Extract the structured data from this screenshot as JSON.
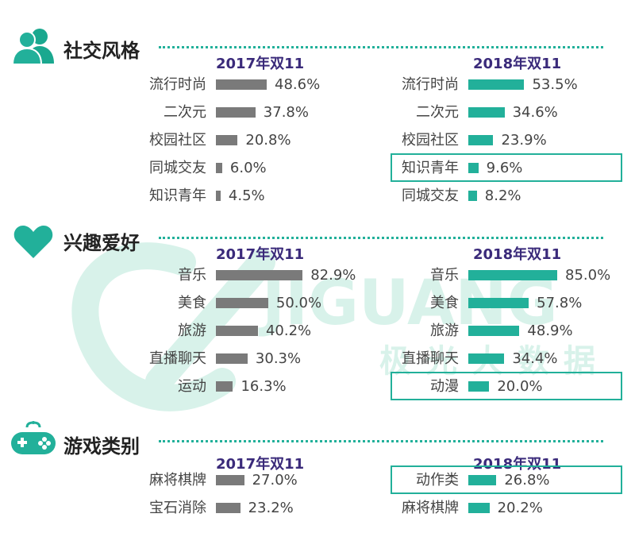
{
  "colors": {
    "accent": "#22b09a",
    "gray_bar": "#7a7a7a",
    "year_text": "#3a2a7a",
    "watermark": "#d8f2ea"
  },
  "watermark": {
    "logo_text": "JIGUANG",
    "sub_text": "极光大数据"
  },
  "sections": [
    {
      "title": "社交风格",
      "icon": "users-icon",
      "chart_data": [
        {
          "type": "bar",
          "title": "2017年双11",
          "categories": [
            "流行时尚",
            "二次元",
            "校园社区",
            "同城交友",
            "知识青年"
          ],
          "values": [
            48.6,
            37.8,
            20.8,
            6.0,
            4.5
          ],
          "labels": [
            "48.6%",
            "37.8%",
            "20.8%",
            "6.0%",
            "4.5%"
          ],
          "highlight": -1
        },
        {
          "type": "bar",
          "title": "2018年双11",
          "categories": [
            "流行时尚",
            "二次元",
            "校园社区",
            "知识青年",
            "同城交友"
          ],
          "values": [
            53.5,
            34.6,
            23.9,
            9.6,
            8.2
          ],
          "labels": [
            "53.5%",
            "34.6%",
            "23.9%",
            "9.6%",
            "8.2%"
          ],
          "highlight": 3
        }
      ]
    },
    {
      "title": "兴趣爱好",
      "icon": "heart-icon",
      "chart_data": [
        {
          "type": "bar",
          "title": "2017年双11",
          "categories": [
            "音乐",
            "美食",
            "旅游",
            "直播聊天",
            "运动"
          ],
          "values": [
            82.9,
            50.0,
            40.2,
            30.3,
            16.3
          ],
          "labels": [
            "82.9%",
            "50.0%",
            "40.2%",
            "30.3%",
            "16.3%"
          ],
          "highlight": -1
        },
        {
          "type": "bar",
          "title": "2018年双11",
          "categories": [
            "音乐",
            "美食",
            "旅游",
            "直播聊天",
            "动漫"
          ],
          "values": [
            85.0,
            57.8,
            48.9,
            34.4,
            20.0
          ],
          "labels": [
            "85.0%",
            "57.8%",
            "48.9%",
            "34.4%",
            "20.0%"
          ],
          "highlight": 4
        }
      ]
    },
    {
      "title": "游戏类别",
      "icon": "gamepad-icon",
      "chart_data": [
        {
          "type": "bar",
          "title": "2017年双11",
          "categories": [
            "麻将棋牌",
            "宝石消除"
          ],
          "values": [
            27.0,
            23.2
          ],
          "labels": [
            "27.0%",
            "23.2%"
          ],
          "highlight": -1
        },
        {
          "type": "bar",
          "title": "2018年双11",
          "categories": [
            "动作类",
            "麻将棋牌"
          ],
          "values": [
            26.8,
            20.2
          ],
          "labels": [
            "26.8%",
            "20.2%"
          ],
          "highlight": 0
        }
      ]
    }
  ]
}
